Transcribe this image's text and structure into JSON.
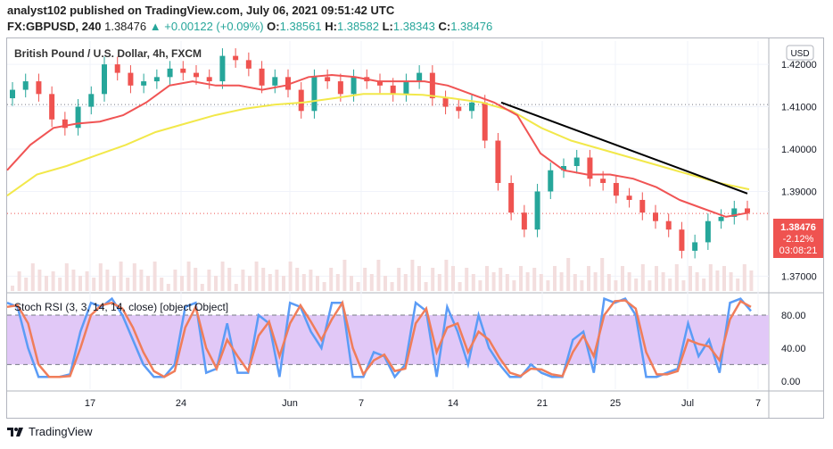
{
  "header": {
    "published": "analyst102 published on TradingView.com, July 06, 2021 09:51:42 UTC",
    "symbol": "FX:GBPUSD, 240",
    "last": "1.38476",
    "change": "+0.00122 (+0.09%)",
    "o_label": "O:",
    "o": "1.38561",
    "h_label": "H:",
    "h": "1.38582",
    "l_label": "L:",
    "l": "1.38343",
    "c_label": "C:",
    "c": "1.38476"
  },
  "chart_data": [
    {
      "type": "line",
      "title": "British Pound / U.S. Dollar, 4h, FXCM",
      "currency_label": "USD",
      "ylim": [
        1.3665,
        1.4255
      ],
      "y_ticks": [
        "1.42000",
        "1.41000",
        "1.40000",
        "1.39000",
        "1.37000"
      ],
      "y_tick_values": [
        1.42,
        1.41,
        1.4,
        1.39,
        1.37
      ],
      "x_ticks": [
        "17",
        "24",
        "Jun",
        "7",
        "14",
        "21",
        "25",
        "Jul",
        "7"
      ],
      "current_price": "1.38476",
      "price_change": "-2.12%",
      "countdown": "03:08:21",
      "dotted_level": 1.4105,
      "series": [
        {
          "name": "",
          "color": "#f05454",
          "role": "fast-ma",
          "values": [
            1.395,
            1.401,
            1.405,
            1.406,
            1.4065,
            1.408,
            1.411,
            1.415,
            1.416,
            1.415,
            1.415,
            1.414,
            1.415,
            1.417,
            1.4175,
            1.417,
            1.416,
            1.416,
            1.416,
            1.415,
            1.413,
            1.411,
            1.408,
            1.399,
            1.395,
            1.394,
            1.394,
            1.393,
            1.391,
            1.388,
            1.386,
            1.384,
            1.385
          ]
        },
        {
          "name": "",
          "color": "#f2e84a",
          "role": "slow-ma",
          "values": [
            1.389,
            1.394,
            1.396,
            1.3985,
            1.401,
            1.404,
            1.406,
            1.408,
            1.4095,
            1.4105,
            1.411,
            1.412,
            1.413,
            1.413,
            1.4128,
            1.412,
            1.411,
            1.409,
            1.405,
            1.402,
            1.4,
            1.398,
            1.396,
            1.394,
            1.392,
            1.3905
          ]
        },
        {
          "name": "",
          "color": "#000000",
          "role": "trendline",
          "values": [
            1.411,
            1.3895
          ]
        }
      ],
      "candles_close": [
        1.414,
        1.416,
        1.413,
        1.407,
        1.405,
        1.41,
        1.413,
        1.42,
        1.418,
        1.415,
        1.416,
        1.417,
        1.419,
        1.418,
        1.417,
        1.416,
        1.422,
        1.421,
        1.419,
        1.415,
        1.417,
        1.414,
        1.409,
        1.417,
        1.416,
        1.413,
        1.417,
        1.416,
        1.415,
        1.413,
        1.416,
        1.418,
        1.412,
        1.41,
        1.409,
        1.411,
        1.402,
        1.392,
        1.385,
        1.381,
        1.39,
        1.395,
        1.396,
        1.398,
        1.393,
        1.392,
        1.389,
        1.388,
        1.385,
        1.383,
        1.381,
        1.376,
        1.378,
        1.383,
        1.384,
        1.386,
        1.385
      ]
    },
    {
      "type": "line",
      "title": "Stoch RSI (3, 3, 14, 14, close) [object Object]",
      "ylim": [
        -10,
        105
      ],
      "y_ticks": [
        "80.00",
        "40.00",
        "0.00"
      ],
      "y_tick_values": [
        80,
        40,
        0
      ],
      "band": [
        20,
        80
      ],
      "series": [
        {
          "name": "",
          "color": "#5b9cf6",
          "role": "k",
          "values": [
            95,
            90,
            40,
            5,
            5,
            5,
            8,
            60,
            95,
            90,
            100,
            80,
            50,
            20,
            5,
            5,
            20,
            90,
            95,
            10,
            15,
            70,
            10,
            10,
            80,
            70,
            5,
            95,
            90,
            60,
            40,
            95,
            95,
            5,
            5,
            35,
            30,
            5,
            20,
            95,
            85,
            5,
            90,
            60,
            20,
            80,
            40,
            20,
            5,
            5,
            20,
            10,
            5,
            5,
            50,
            60,
            10,
            100,
            95,
            100,
            80,
            5,
            5,
            10,
            15,
            70,
            30,
            50,
            10,
            95,
            100,
            85
          ]
        },
        {
          "name": "",
          "color": "#f07d5a",
          "role": "d",
          "values": [
            90,
            92,
            70,
            20,
            5,
            5,
            6,
            40,
            80,
            92,
            95,
            88,
            65,
            35,
            12,
            5,
            12,
            65,
            90,
            40,
            15,
            50,
            30,
            12,
            55,
            72,
            30,
            70,
            92,
            72,
            50,
            75,
            95,
            40,
            8,
            25,
            32,
            12,
            15,
            70,
            88,
            35,
            65,
            70,
            35,
            60,
            50,
            28,
            10,
            6,
            15,
            14,
            8,
            6,
            35,
            55,
            30,
            80,
            97,
            98,
            88,
            35,
            8,
            8,
            12,
            50,
            45,
            42,
            25,
            75,
            97,
            90
          ]
        }
      ]
    }
  ],
  "footer": {
    "brand": "TradingView"
  },
  "colors": {
    "up": "#26a69a",
    "down": "#ef5350",
    "band_fill": "#e1c8f7",
    "volume": "#f3dede"
  }
}
